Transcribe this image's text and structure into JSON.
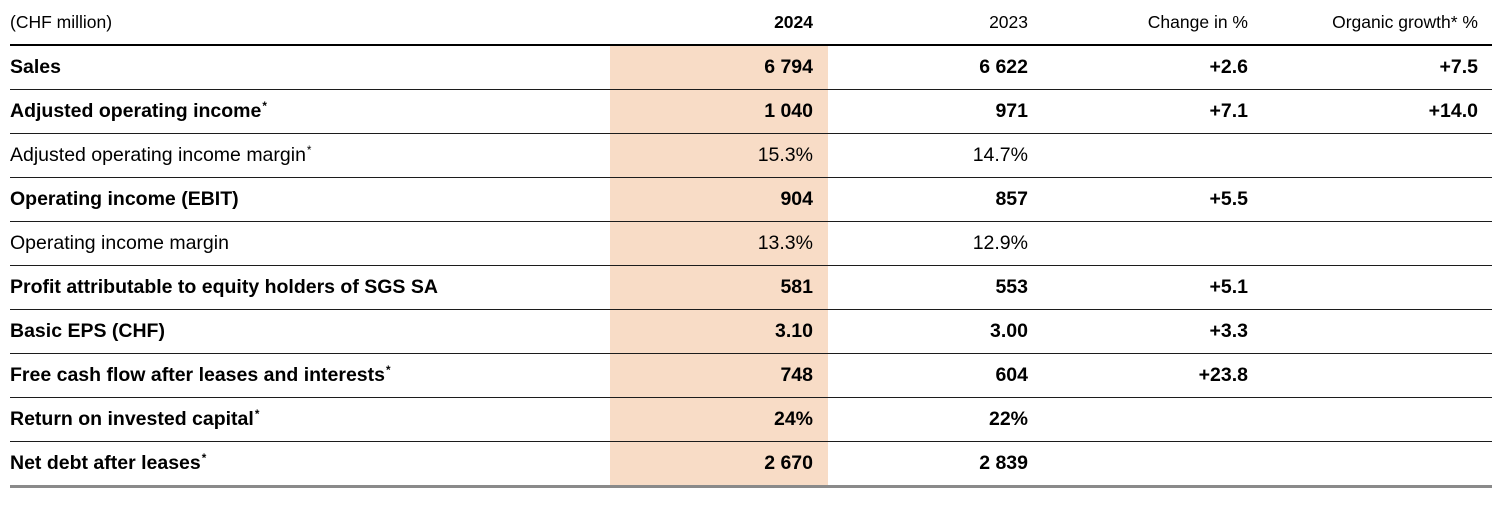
{
  "table": {
    "unit_label": "(CHF million)",
    "columns": [
      "2024",
      "2023",
      "Change in %",
      "Organic growth* %"
    ],
    "highlight_color": "#f8dcc6",
    "text_color": "#000000",
    "header_rule_color": "#000000",
    "row_rule_color": "#1c1c1c",
    "bottom_rule_color": "#8a8a8a",
    "rows": [
      {
        "label": "Sales",
        "footnote": "",
        "bold": true,
        "y2024": "6 794",
        "y2023": "6 622",
        "change": "+2.6",
        "organic": "+7.5"
      },
      {
        "label": "Adjusted operating income",
        "footnote": "*",
        "bold": true,
        "y2024": "1 040",
        "y2023": "971",
        "change": "+7.1",
        "organic": "+14.0"
      },
      {
        "label": "Adjusted operating income margin",
        "footnote": "*",
        "bold": false,
        "y2024": "15.3%",
        "y2023": "14.7%",
        "change": "",
        "organic": ""
      },
      {
        "label": "Operating income (EBIT)",
        "footnote": "",
        "bold": true,
        "y2024": "904",
        "y2023": "857",
        "change": "+5.5",
        "organic": ""
      },
      {
        "label": "Operating income margin",
        "footnote": "",
        "bold": false,
        "y2024": "13.3%",
        "y2023": "12.9%",
        "change": "",
        "organic": ""
      },
      {
        "label": "Profit attributable to equity holders of SGS SA",
        "footnote": "",
        "bold": true,
        "y2024": "581",
        "y2023": "553",
        "change": "+5.1",
        "organic": ""
      },
      {
        "label": "Basic EPS (CHF)",
        "footnote": "",
        "bold": true,
        "y2024": "3.10",
        "y2023": "3.00",
        "change": "+3.3",
        "organic": ""
      },
      {
        "label": "Free cash flow after leases and interests",
        "footnote": "*",
        "bold": true,
        "y2024": "748",
        "y2023": "604",
        "change": "+23.8",
        "organic": ""
      },
      {
        "label": "Return on invested capital",
        "footnote": "*",
        "bold": true,
        "y2024": "24%",
        "y2023": "22%",
        "change": "",
        "organic": ""
      },
      {
        "label": "Net debt after leases",
        "footnote": "*",
        "bold": true,
        "y2024": "2 670",
        "y2023": "2 839",
        "change": "",
        "organic": ""
      }
    ]
  }
}
